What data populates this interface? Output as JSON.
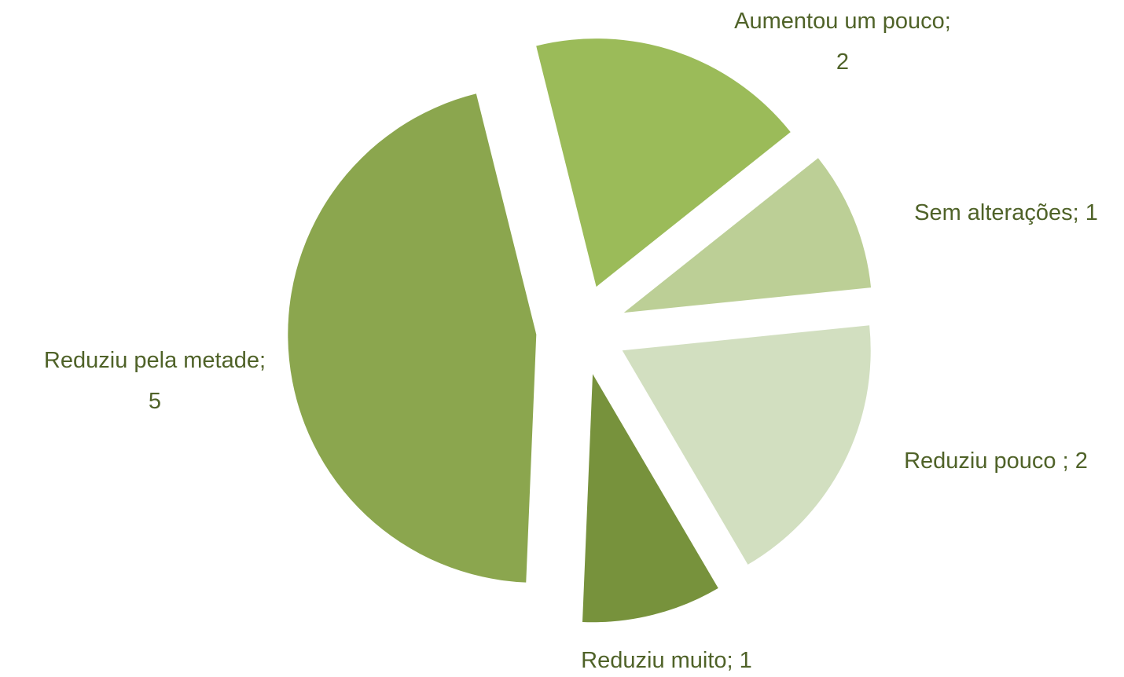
{
  "chart_data": {
    "type": "pie",
    "categories": [
      "Aumentou um pouco",
      "Sem alterações",
      "Reduziu pouco ",
      "Reduziu muito",
      "Reduziu pela metade"
    ],
    "values": [
      2,
      1,
      2,
      1,
      5
    ],
    "colors": [
      "#9bbb59",
      "#bccf96",
      "#d2dfc0",
      "#77923c",
      "#8ba64e"
    ],
    "label_separator": "; ",
    "label_color": "#4f6228"
  }
}
